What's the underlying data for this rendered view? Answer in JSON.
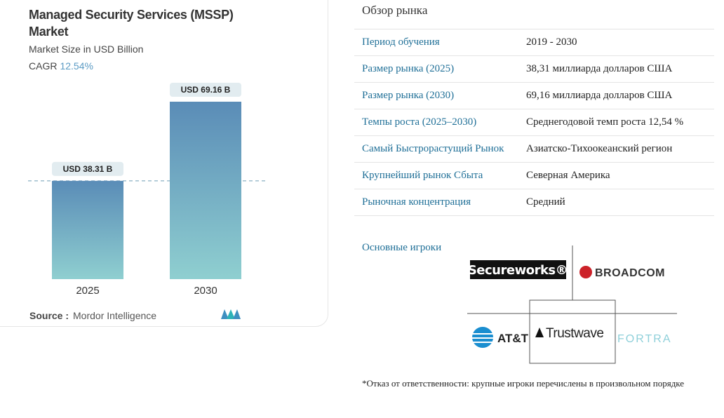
{
  "chart_data": {
    "type": "bar",
    "title": "Managed Security Services (MSSP) Market",
    "subtitle": "Market Size in USD Billion",
    "cagr_label": "CAGR",
    "cagr": "12.54%",
    "categories": [
      "2025",
      "2030"
    ],
    "values": [
      38.31,
      69.16
    ],
    "value_labels": [
      "USD 38.31 B",
      "USD 69.16 B"
    ],
    "source_label": "Source :",
    "source": "Mordor Intelligence"
  },
  "market_overview": {
    "title": "Обзор рынка",
    "rows": [
      [
        "Период обучения",
        "2019 - 2030"
      ],
      [
        "Размер рынка (2025)",
        "38,31 миллиарда долларов США"
      ],
      [
        "Размер рынка (2030)",
        "69,16 миллиарда долларов США"
      ],
      [
        "Темпы роста (2025–2030)",
        "Среднегодовой темп роста 12,54 %"
      ],
      [
        "Самый Быстрорастущий Рынок",
        "Азиатско-Тихоокеанский регион"
      ],
      [
        "Крупнейший рынок Сбыта",
        "Северная Америка"
      ],
      [
        "Рыночная концентрация",
        "Средний"
      ]
    ]
  },
  "key_players": {
    "label": "Основные игроки",
    "logos": [
      "Secureworks®",
      "BROADCOM",
      "AT&T",
      "Trustwave",
      "FORTRA"
    ]
  },
  "disclaimer": "*Отказ от ответственности: крупные игроки перечислены в произвольном порядке"
}
